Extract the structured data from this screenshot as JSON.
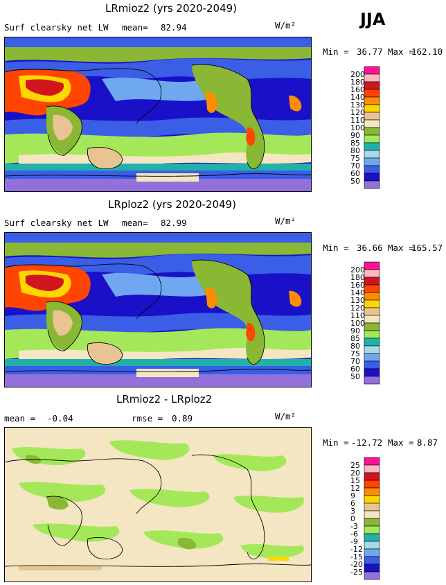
{
  "season": "JJA",
  "panels": [
    {
      "title": "LRmioz2 (yrs 2020-2049)",
      "variable": "Surf clearsky net LW",
      "stat1_label": "mean=",
      "stat1_value": "82.94",
      "stat2_label": "",
      "stat2_value": "",
      "units": "W/m²",
      "min_label": "Min =",
      "min_value": "36.77",
      "max_label": "Max =",
      "max_value": "162.10",
      "levels": [
        "200",
        "180",
        "160",
        "140",
        "130",
        "120",
        "110",
        "100",
        "90",
        "85",
        "80",
        "75",
        "70",
        "60",
        "50"
      ],
      "colors": [
        "#ff1493",
        "#ffb6c1",
        "#d2141e",
        "#ff4500",
        "#ff8c00",
        "#ffd700",
        "#e8c493",
        "#f5e6c3",
        "#8ab734",
        "#a4e85a",
        "#20b2aa",
        "#a8d8e8",
        "#6fa8f0",
        "#3a5ee6",
        "#1a10c8",
        "#9370db"
      ]
    },
    {
      "title": "LRploz2 (yrs 2020-2049)",
      "variable": "Surf clearsky net LW",
      "stat1_label": "mean=",
      "stat1_value": "82.99",
      "stat2_label": "",
      "stat2_value": "",
      "units": "W/m²",
      "min_label": "Min =",
      "min_value": "36.66",
      "max_label": "Max =",
      "max_value": "165.57",
      "levels": [
        "200",
        "180",
        "160",
        "140",
        "130",
        "120",
        "110",
        "100",
        "90",
        "85",
        "80",
        "75",
        "70",
        "60",
        "50"
      ],
      "colors": [
        "#ff1493",
        "#ffb6c1",
        "#d2141e",
        "#ff4500",
        "#ff8c00",
        "#ffd700",
        "#e8c493",
        "#f5e6c3",
        "#8ab734",
        "#a4e85a",
        "#20b2aa",
        "#a8d8e8",
        "#6fa8f0",
        "#3a5ee6",
        "#1a10c8",
        "#9370db"
      ]
    },
    {
      "title": "LRmioz2 - LRploz2",
      "variable": "",
      "stat1_label": "mean =",
      "stat1_value": "-0.04",
      "stat2_label": "rmse =",
      "stat2_value": "0.89",
      "units": "W/m²",
      "min_label": "Min =",
      "min_value": "-12.72",
      "max_label": "Max =",
      "max_value": "8.87",
      "levels": [
        "25",
        "20",
        "15",
        "12",
        "9",
        "6",
        "3",
        "0",
        "-3",
        "-6",
        "-9",
        "-12",
        "-15",
        "-20",
        "-25"
      ],
      "colors": [
        "#ff1493",
        "#ffb6c1",
        "#d2141e",
        "#ff4500",
        "#ff8c00",
        "#ffd700",
        "#e8c493",
        "#f5e6c3",
        "#8ab734",
        "#a4e85a",
        "#20b2aa",
        "#a8d8e8",
        "#6fa8f0",
        "#3a5ee6",
        "#1a10c8",
        "#9370db"
      ]
    }
  ],
  "chart_data": [
    {
      "type": "heatmap",
      "title": "LRmioz2 (yrs 2020-2049)",
      "variable": "Surf clearsky net LW",
      "units": "W/m²",
      "mean": 82.94,
      "min": 36.77,
      "max": 162.1,
      "contour_levels": [
        50,
        60,
        70,
        75,
        80,
        85,
        90,
        100,
        110,
        120,
        130,
        140,
        160,
        180,
        200
      ]
    },
    {
      "type": "heatmap",
      "title": "LRploz2 (yrs 2020-2049)",
      "variable": "Surf clearsky net LW",
      "units": "W/m²",
      "mean": 82.99,
      "min": 36.66,
      "max": 165.57,
      "contour_levels": [
        50,
        60,
        70,
        75,
        80,
        85,
        90,
        100,
        110,
        120,
        130,
        140,
        160,
        180,
        200
      ]
    },
    {
      "type": "heatmap",
      "title": "LRmioz2 - LRploz2",
      "units": "W/m²",
      "mean": -0.04,
      "rmse": 0.89,
      "min": -12.72,
      "max": 8.87,
      "contour_levels": [
        -25,
        -20,
        -15,
        -12,
        -9,
        -6,
        -3,
        0,
        3,
        6,
        9,
        12,
        15,
        20,
        25
      ]
    }
  ]
}
